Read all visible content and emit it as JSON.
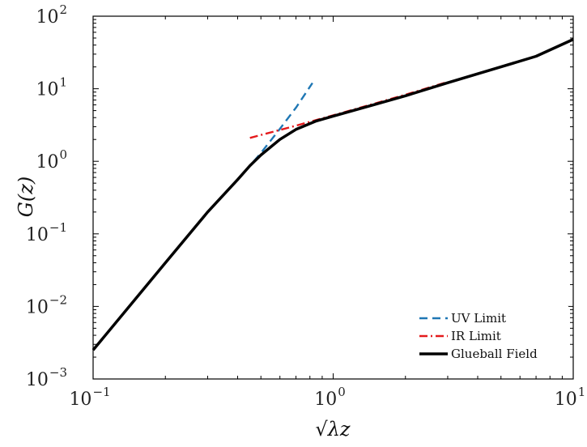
{
  "chart_data": {
    "type": "line",
    "xscale": "log",
    "yscale": "log",
    "xlim": [
      0.1,
      10
    ],
    "ylim": [
      0.001,
      100
    ],
    "xlabel": "√λz",
    "ylabel": "G(z)",
    "grid": false,
    "legend_position": "bottom-right",
    "x_ticks": [
      {
        "base": "10",
        "exp": "−1"
      },
      {
        "base": "10",
        "exp": "0"
      },
      {
        "base": "10",
        "exp": "1"
      }
    ],
    "y_ticks": [
      {
        "base": "10",
        "exp": "−3"
      },
      {
        "base": "10",
        "exp": "−2"
      },
      {
        "base": "10",
        "exp": "−1"
      },
      {
        "base": "10",
        "exp": "0"
      },
      {
        "base": "10",
        "exp": "1"
      },
      {
        "base": "10",
        "exp": "2"
      }
    ],
    "series": [
      {
        "name": "UV Limit",
        "color": "#1f77b4",
        "style": "dashed",
        "x": [
          0.43,
          0.5,
          0.6,
          0.7,
          0.82
        ],
        "y": [
          0.73,
          1.3,
          2.8,
          5.5,
          12.0
        ]
      },
      {
        "name": "IR Limit",
        "color": "#e41a1c",
        "style": "dashdot",
        "x": [
          0.45,
          0.7,
          1.0,
          1.5,
          2.0,
          3.0
        ],
        "y": [
          2.1,
          3.1,
          4.3,
          6.3,
          8.3,
          12.4
        ]
      },
      {
        "name": "Glueball Field",
        "color": "#000000",
        "style": "solid",
        "x": [
          0.1,
          0.2,
          0.3,
          0.4,
          0.45,
          0.5,
          0.6,
          0.7,
          0.85,
          1.0,
          1.5,
          2.0,
          3.0,
          5.0,
          7.0,
          10.0
        ],
        "y": [
          0.0025,
          0.04,
          0.2,
          0.56,
          0.87,
          1.22,
          2.0,
          2.75,
          3.6,
          4.2,
          6.1,
          8.0,
          12.1,
          20.0,
          28.0,
          48.0
        ]
      }
    ]
  }
}
